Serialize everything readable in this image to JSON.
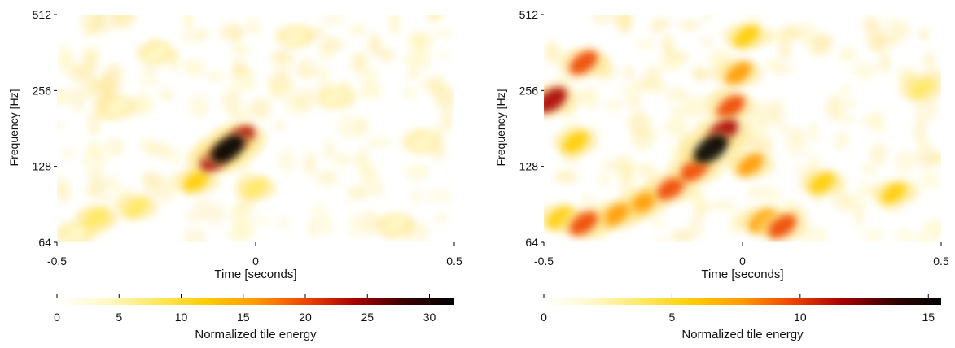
{
  "chart_data": [
    {
      "type": "heatmap",
      "xlabel": "Time [seconds]",
      "ylabel": "Frequency [Hz]",
      "xlim": [
        -0.5,
        0.5
      ],
      "ylim": [
        64,
        512
      ],
      "yscale": "log",
      "xticks": [
        -0.5,
        0,
        0.5
      ],
      "xtick_labels": [
        "-0.5",
        "0",
        "0.5"
      ],
      "yticks": [
        64,
        128,
        256,
        512
      ],
      "ytick_labels": [
        "64",
        "128",
        "256",
        "512"
      ],
      "colorbar": {
        "label": "Normalized tile energy",
        "range": [
          0,
          32
        ],
        "ticks": [
          0,
          5,
          10,
          15,
          20,
          25,
          30
        ],
        "tick_labels": [
          "0",
          "5",
          "10",
          "15",
          "20",
          "25",
          "30"
        ]
      },
      "colormap": [
        "#ffffff",
        "#fff8c8",
        "#ffe860",
        "#ffcc00",
        "#ff9a00",
        "#ee4400",
        "#a80000",
        "#3a0000",
        "#000000"
      ],
      "blobs": [
        {
          "x": -0.07,
          "y": 150,
          "energy": 30
        },
        {
          "x": -0.1,
          "y": 138,
          "energy": 25
        },
        {
          "x": -0.04,
          "y": 165,
          "energy": 22
        },
        {
          "x": -0.15,
          "y": 112,
          "energy": 12
        },
        {
          "x": -0.3,
          "y": 88,
          "energy": 8
        },
        {
          "x": -0.4,
          "y": 80,
          "energy": 6
        },
        {
          "x": 0.0,
          "y": 105,
          "energy": 6
        },
        {
          "x": -0.35,
          "y": 220,
          "energy": 5
        },
        {
          "x": -0.25,
          "y": 360,
          "energy": 4
        },
        {
          "x": 0.42,
          "y": 160,
          "energy": 5
        },
        {
          "x": 0.35,
          "y": 75,
          "energy": 4
        },
        {
          "x": -0.45,
          "y": 70,
          "energy": 5
        },
        {
          "x": 0.2,
          "y": 240,
          "energy": 4
        },
        {
          "x": 0.1,
          "y": 420,
          "energy": 4
        }
      ]
    },
    {
      "type": "heatmap",
      "xlabel": "Time [seconds]",
      "ylabel": "Frequency [Hz]",
      "xlim": [
        -0.5,
        0.5
      ],
      "ylim": [
        64,
        512
      ],
      "yscale": "log",
      "xticks": [
        -0.5,
        0,
        0.5
      ],
      "xtick_labels": [
        "-0.5",
        "0",
        "0.5"
      ],
      "yticks": [
        64,
        128,
        256,
        512
      ],
      "ytick_labels": [
        "64",
        "128",
        "256",
        "512"
      ],
      "colorbar": {
        "label": "Normalized tile energy",
        "range": [
          0,
          15.5
        ],
        "ticks": [
          0,
          5,
          10,
          15
        ],
        "tick_labels": [
          "0",
          "5",
          "10",
          "15"
        ]
      },
      "colormap": [
        "#ffffff",
        "#fff8c8",
        "#ffe860",
        "#ffcc00",
        "#ff9a00",
        "#ee4400",
        "#a80000",
        "#3a0000",
        "#000000"
      ],
      "blobs": [
        {
          "x": -0.08,
          "y": 150,
          "energy": 15
        },
        {
          "x": -0.05,
          "y": 175,
          "energy": 12
        },
        {
          "x": -0.03,
          "y": 220,
          "energy": 9
        },
        {
          "x": -0.01,
          "y": 300,
          "energy": 7
        },
        {
          "x": 0.01,
          "y": 420,
          "energy": 6
        },
        {
          "x": -0.12,
          "y": 125,
          "energy": 10
        },
        {
          "x": -0.18,
          "y": 105,
          "energy": 9
        },
        {
          "x": -0.25,
          "y": 92,
          "energy": 8
        },
        {
          "x": -0.32,
          "y": 82,
          "energy": 8
        },
        {
          "x": -0.4,
          "y": 76,
          "energy": 9
        },
        {
          "x": -0.46,
          "y": 80,
          "energy": 6
        },
        {
          "x": 0.05,
          "y": 78,
          "energy": 8
        },
        {
          "x": 0.1,
          "y": 74,
          "energy": 9
        },
        {
          "x": -0.48,
          "y": 235,
          "energy": 11
        },
        {
          "x": -0.4,
          "y": 330,
          "energy": 9
        },
        {
          "x": 0.02,
          "y": 130,
          "energy": 7
        },
        {
          "x": -0.42,
          "y": 160,
          "energy": 5
        },
        {
          "x": 0.38,
          "y": 100,
          "energy": 5
        },
        {
          "x": 0.2,
          "y": 110,
          "energy": 5
        },
        {
          "x": 0.45,
          "y": 260,
          "energy": 4
        }
      ]
    }
  ]
}
